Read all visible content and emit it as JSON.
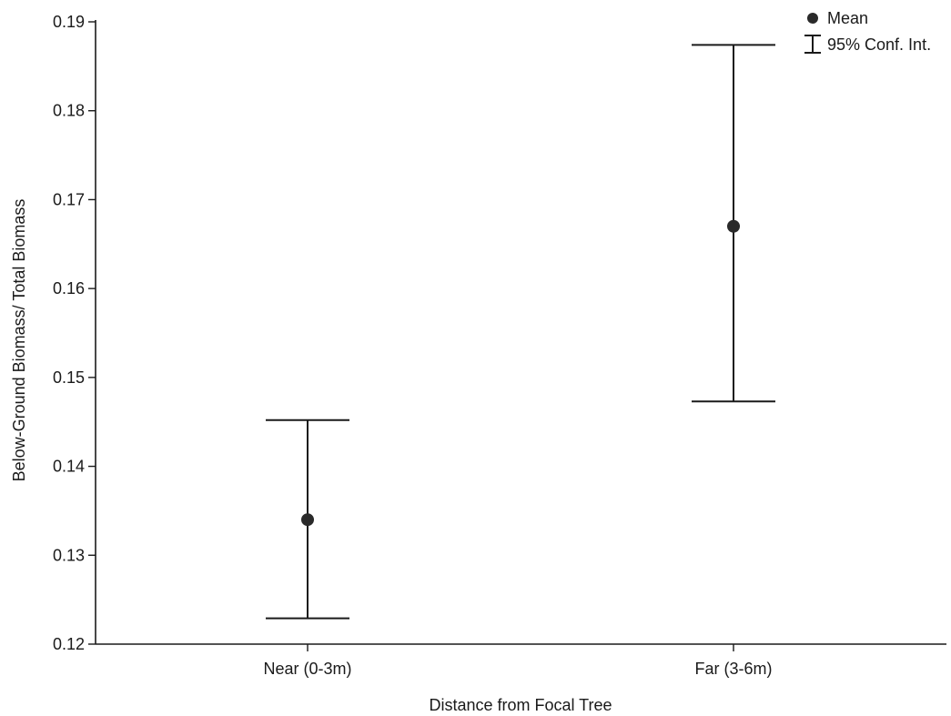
{
  "chart_data": {
    "type": "scatter",
    "title": "",
    "xlabel": "Distance from Focal Tree",
    "ylabel": "Below-Ground Biomass/ Total Biomass",
    "categories": [
      "Near (0-3m)",
      "Far (3-6m)"
    ],
    "ylim": [
      0.12,
      0.19
    ],
    "yticks": [
      "0.12",
      "0.13",
      "0.14",
      "0.15",
      "0.16",
      "0.17",
      "0.18",
      "0.19"
    ],
    "series": [
      {
        "name": "Mean",
        "values": [
          0.134,
          0.167
        ],
        "ci_lower": [
          0.1229,
          0.1473
        ],
        "ci_upper": [
          0.1452,
          0.1874
        ]
      }
    ],
    "legend": {
      "placement": "top-right",
      "entries": [
        {
          "label": "Mean",
          "marker": "circle"
        },
        {
          "label": "95% Conf. Int.",
          "marker": "errorbar"
        }
      ]
    },
    "grid": false,
    "colors": {
      "marks": "#2a2a2a",
      "axes": "#1a1a1a"
    }
  }
}
